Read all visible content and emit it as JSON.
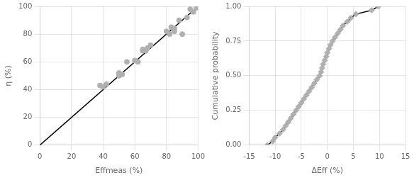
{
  "chart_data": [
    {
      "type": "scatter",
      "xlabel": "Effmeas (%)",
      "ylabel": "η (%)",
      "xlim": [
        0,
        100
      ],
      "ylim": [
        0,
        100
      ],
      "xticks": [
        0,
        20,
        40,
        60,
        80,
        100
      ],
      "yticks": [
        0,
        20,
        40,
        60,
        80,
        100
      ],
      "grid": true,
      "series": [
        {
          "type": "line",
          "color": "#000000",
          "x": [
            0,
            100
          ],
          "values": [
            0,
            100
          ]
        },
        {
          "type": "scatter",
          "marker": "circle",
          "color": "#b0b0b0",
          "x": [
            38,
            40,
            42,
            50,
            50,
            52,
            55,
            60,
            62,
            65,
            65,
            67,
            68,
            70,
            80,
            82,
            83,
            85,
            85,
            88,
            90,
            93,
            95,
            97,
            99
          ],
          "values": [
            43,
            42,
            44,
            50,
            52,
            51,
            60,
            61,
            60,
            68,
            69,
            68,
            70,
            72,
            82,
            80,
            85,
            84,
            82,
            90,
            80,
            92,
            98,
            96,
            99
          ]
        }
      ]
    },
    {
      "type": "scatter",
      "xlabel": "ΔEff (%)",
      "ylabel": "Cumulative probability",
      "xlim": [
        -15,
        15
      ],
      "ylim": [
        0.0,
        1.0
      ],
      "xticks": [
        -15,
        -10,
        -5,
        0,
        5,
        10,
        15
      ],
      "yticks": [
        {
          "value": 0.0,
          "label": "0.00"
        },
        {
          "value": 0.25,
          "label": "0.25"
        },
        {
          "value": 0.5,
          "label": "0.50"
        },
        {
          "value": 0.75,
          "label": "0.75"
        },
        {
          "value": 1.0,
          "label": "1.00"
        }
      ],
      "grid": true,
      "series": [
        {
          "type": "line",
          "color": "#000000",
          "x": [
            -11.5,
            -10.5,
            -10.0,
            -9.2,
            -8.5,
            -8.0,
            -7.5,
            -7.0,
            -6.5,
            -6.0,
            -5.5,
            -5.0,
            -4.5,
            -4.0,
            -3.5,
            -3.0,
            -2.5,
            -2.0,
            -1.5,
            -1.2,
            -1.0,
            -0.8,
            -0.5,
            -0.2,
            0.0,
            0.3,
            0.6,
            1.0,
            1.5,
            2.0,
            2.5,
            3.0,
            3.8,
            4.5,
            5.5,
            8.5,
            9.8
          ],
          "values": [
            0,
            0.027777777777777776,
            0.05555555555555555,
            0.08333333333333333,
            0.1111111111111111,
            0.1388888888888889,
            0.16666666666666666,
            0.19444444444444445,
            0.2222222222222222,
            0.25,
            0.2777777777777778,
            0.3055555555555556,
            0.3333333333333333,
            0.3611111111111111,
            0.3888888888888889,
            0.4166666666666667,
            0.4444444444444444,
            0.4722222222222222,
            0.5,
            0.5277777777777778,
            0.5555555555555556,
            0.5833333333333334,
            0.6111111111111112,
            0.6388888888888888,
            0.6666666666666666,
            0.6944444444444444,
            0.7222222222222222,
            0.75,
            0.7777777777777778,
            0.8055555555555556,
            0.8333333333333334,
            0.8611111111111112,
            0.8888888888888888,
            0.9166666666666666,
            0.9444444444444444,
            0.9722222222222222,
            1
          ]
        },
        {
          "type": "scatter",
          "marker": "diamond",
          "color": "#b0b0b0",
          "x": [
            -11.5,
            -10.5,
            -10.0,
            -9.2,
            -8.5,
            -8.0,
            -7.5,
            -7.0,
            -6.5,
            -6.0,
            -5.5,
            -5.0,
            -4.5,
            -4.0,
            -3.5,
            -3.0,
            -2.5,
            -2.0,
            -1.5,
            -1.2,
            -1.0,
            -0.8,
            -0.5,
            -0.2,
            0.0,
            0.3,
            0.6,
            1.0,
            1.5,
            2.0,
            2.5,
            3.0,
            3.8,
            4.5,
            5.5,
            8.5,
            9.8
          ],
          "values": [
            0,
            0.027777777777777776,
            0.05555555555555555,
            0.08333333333333333,
            0.1111111111111111,
            0.1388888888888889,
            0.16666666666666666,
            0.19444444444444445,
            0.2222222222222222,
            0.25,
            0.2777777777777778,
            0.3055555555555556,
            0.3333333333333333,
            0.3611111111111111,
            0.3888888888888889,
            0.4166666666666667,
            0.4444444444444444,
            0.4722222222222222,
            0.5,
            0.5277777777777778,
            0.5555555555555556,
            0.5833333333333334,
            0.6111111111111112,
            0.6388888888888888,
            0.6666666666666666,
            0.6944444444444444,
            0.7222222222222222,
            0.75,
            0.7777777777777778,
            0.8055555555555556,
            0.8333333333333334,
            0.8611111111111112,
            0.8888888888888888,
            0.9166666666666666,
            0.9444444444444444,
            0.9722222222222222,
            1
          ]
        }
      ]
    }
  ]
}
